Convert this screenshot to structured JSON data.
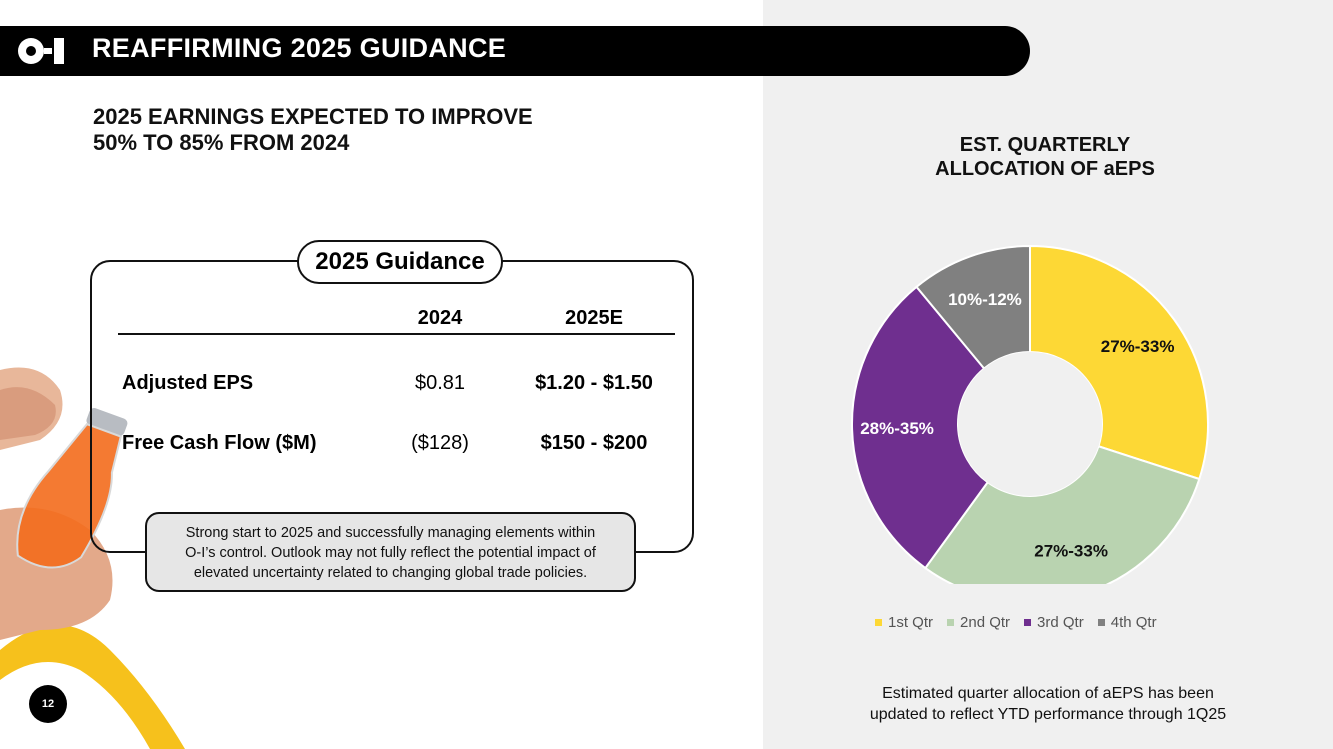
{
  "header": {
    "title": "REAFFIRMING 2025 GUIDANCE"
  },
  "headline": {
    "line1": "2025 EARNINGS EXPECTED TO IMPROVE",
    "line2": "50% TO 85% FROM 2024"
  },
  "guidance": {
    "title": "2025 Guidance",
    "columns": [
      "2024",
      "2025E"
    ],
    "rows": [
      {
        "label": "Adjusted EPS",
        "v2024": "$0.81",
        "v2025": "$1.20 - $1.50"
      },
      {
        "label": "Free Cash Flow ($M)",
        "v2024": "($128)",
        "v2025": "$150 - $200"
      }
    ]
  },
  "note": {
    "line1": "Strong start to 2025 and successfully managing elements within",
    "line2": "O-I’s control.  Outlook may not fully reflect the potential impact of",
    "line3": "elevated uncertainty related to changing global trade policies."
  },
  "page_number": "12",
  "chart_data": {
    "type": "pie",
    "variant": "donut",
    "title": "EST. QUARTERLY ALLOCATION OF aEPS",
    "title_line1": "EST. QUARTERLY",
    "title_line2": "ALLOCATION OF aEPS",
    "categories": [
      "1st Qtr",
      "2nd Qtr",
      "3rd Qtr",
      "4th Qtr"
    ],
    "values": [
      30,
      30,
      29,
      11
    ],
    "labels": [
      "27%-33%",
      "27%-33%",
      "28%-35%",
      "10%-12%"
    ],
    "colors": [
      "#fdd835",
      "#b9d3b0",
      "#6f2f8f",
      "#808080"
    ],
    "label_colors": [
      "#111111",
      "#111111",
      "#ffffff",
      "#ffffff"
    ],
    "legend_position": "bottom"
  },
  "footnote": {
    "line1": "Estimated quarter allocation of aEPS has been",
    "line2": "updated to reflect YTD performance through 1Q25"
  }
}
